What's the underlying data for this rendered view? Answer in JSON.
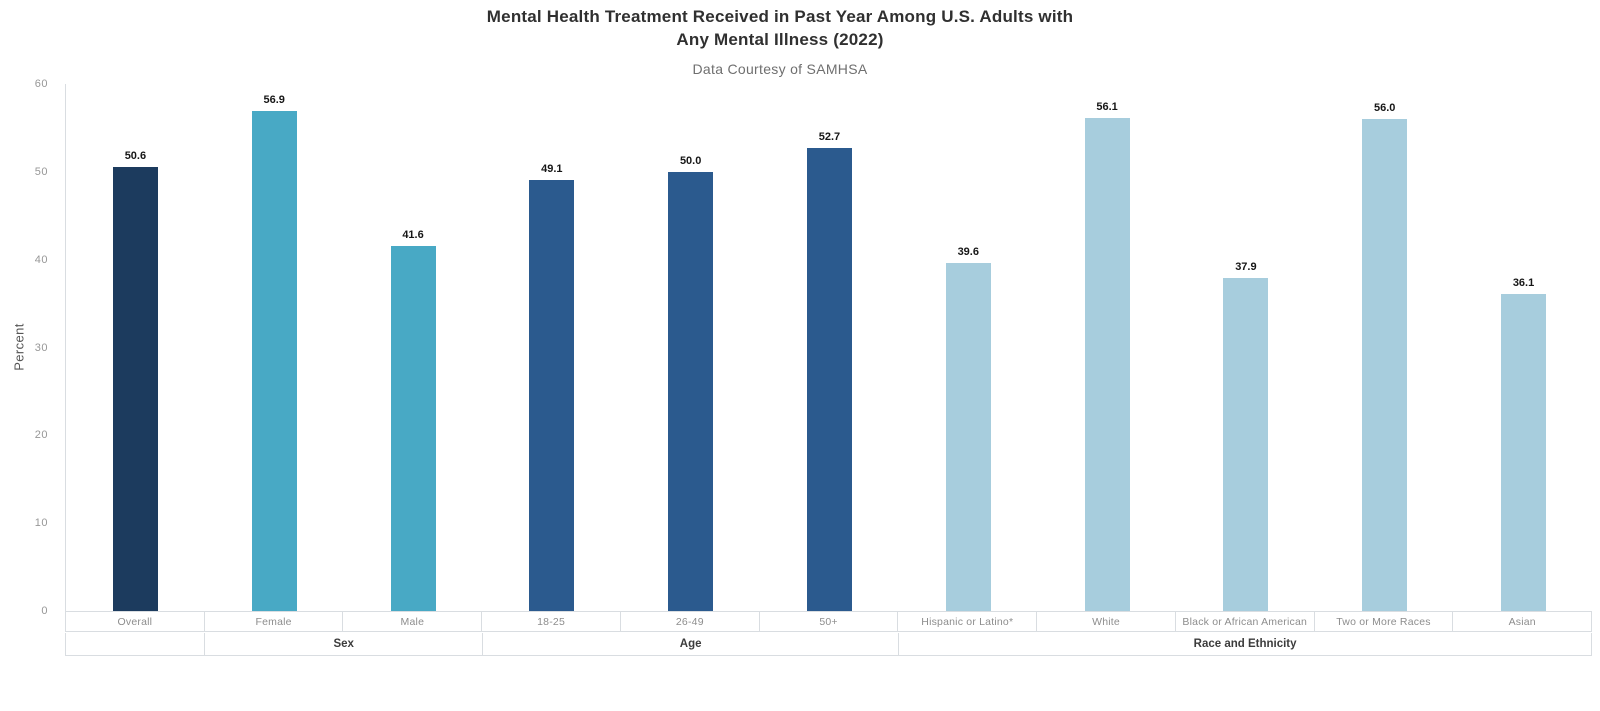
{
  "header": {
    "title_line1": "Mental Health Treatment Received in Past Year Among U.S. Adults with",
    "title_line2": "Any Mental Illness (2022)",
    "subtitle": "Data Courtesy of SAMHSA"
  },
  "chart_data": {
    "type": "bar",
    "title": "Mental Health Treatment Received in Past Year Among U.S. Adults with Any Mental Illness (2022)",
    "subtitle": "Data Courtesy of SAMHSA",
    "xlabel": "",
    "ylabel": "Percent",
    "ylim": [
      0,
      60
    ],
    "yticks": [
      0,
      10,
      20,
      30,
      40,
      50,
      60
    ],
    "grid": false,
    "legend": false,
    "value_labels_shown": true,
    "groups": [
      {
        "label": "",
        "color": "#1c3b5e",
        "bars": [
          {
            "category": "Overall",
            "value": 50.6,
            "label": "50.6"
          }
        ]
      },
      {
        "label": "Sex",
        "color": "#48a9c5",
        "bars": [
          {
            "category": "Female",
            "value": 56.9,
            "label": "56.9"
          },
          {
            "category": "Male",
            "value": 41.6,
            "label": "41.6"
          }
        ]
      },
      {
        "label": "Age",
        "color": "#2b5a8e",
        "bars": [
          {
            "category": "18-25",
            "value": 49.1,
            "label": "49.1"
          },
          {
            "category": "26-49",
            "value": 50.0,
            "label": "50.0"
          },
          {
            "category": "50+",
            "value": 52.7,
            "label": "52.7"
          }
        ]
      },
      {
        "label": "Race and Ethnicity",
        "color": "#a7cddd",
        "bars": [
          {
            "category": "Hispanic or Latino*",
            "value": 39.6,
            "label": "39.6"
          },
          {
            "category": "White",
            "value": 56.1,
            "label": "56.1"
          },
          {
            "category": "Black or African American",
            "value": 37.9,
            "label": "37.9"
          },
          {
            "category": "Two or More Races",
            "value": 56.0,
            "label": "56.0"
          },
          {
            "category": "Asian",
            "value": 36.1,
            "label": "36.1"
          }
        ]
      }
    ]
  }
}
